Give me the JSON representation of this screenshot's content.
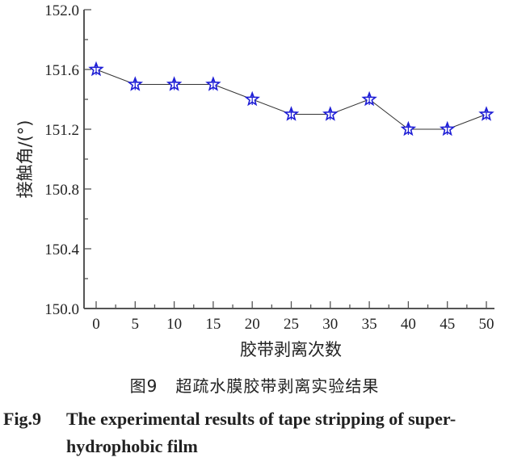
{
  "chart_data": {
    "type": "line",
    "title": "",
    "xlabel": "胶带剥离次数",
    "ylabel": "接触角/(°)",
    "x": [
      0,
      5,
      10,
      15,
      20,
      25,
      30,
      35,
      40,
      45,
      50
    ],
    "series": [
      {
        "name": "接触角",
        "values": [
          151.6,
          151.5,
          151.5,
          151.5,
          151.4,
          151.3,
          151.3,
          151.4,
          151.2,
          151.2,
          151.3
        ],
        "marker": "star",
        "marker_color": "#1f1fd6",
        "line_color": "#333333"
      }
    ],
    "xlim": [
      -1.5,
      51
    ],
    "ylim": [
      150.0,
      152.0
    ],
    "xticks": [
      "0",
      "5",
      "10",
      "15",
      "20",
      "25",
      "30",
      "35",
      "40",
      "45",
      "50"
    ],
    "yticks": [
      "150.0",
      "150.4",
      "150.8",
      "151.2",
      "151.6",
      "152.0"
    ],
    "grid": false,
    "legend": null
  },
  "caption": {
    "cn_fig_no": "图9",
    "cn_text": "超疏水膜胶带剥离实验结果",
    "en_fig_no": "Fig.9",
    "en_line1": "The experimental results of tape stripping of super-",
    "en_line2": "hydrophobic film"
  }
}
